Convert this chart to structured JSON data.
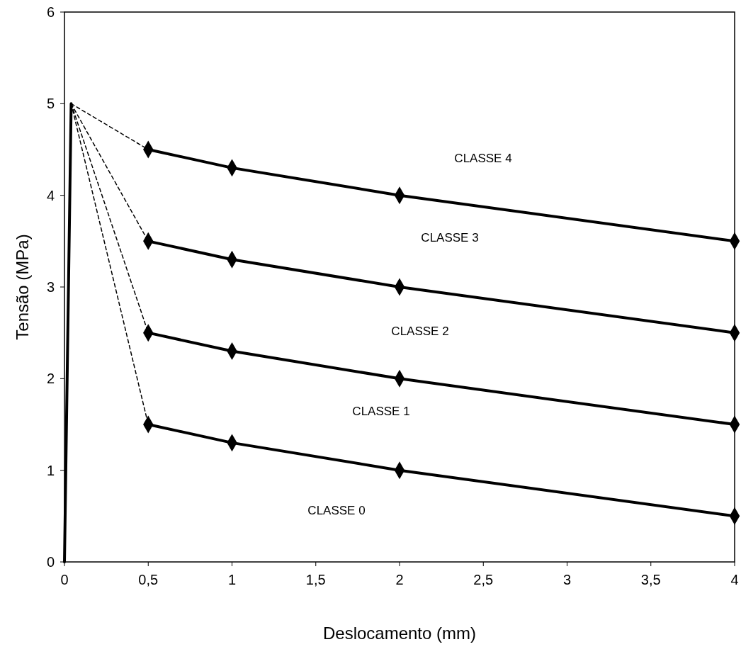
{
  "chart_data": {
    "type": "line",
    "xlabel": "Deslocamento (mm)",
    "ylabel": "Tensão (MPa)",
    "xlim": [
      0,
      4
    ],
    "ylim": [
      0,
      6
    ],
    "xticks": [
      0,
      {
        "value": 0.5,
        "label": "0,5"
      },
      1,
      {
        "value": 1.5,
        "label": "1,5"
      },
      2,
      {
        "value": 2.5,
        "label": "2,5"
      },
      3,
      {
        "value": 3.5,
        "label": "3,5"
      },
      4
    ],
    "yticks": [
      0,
      1,
      2,
      3,
      4,
      5,
      6
    ],
    "grid": false,
    "series": [
      {
        "x": [
          0,
          0.04
        ],
        "values": [
          0,
          5
        ],
        "color": "#000000",
        "line_style": "solid"
      },
      {
        "x": [
          0.04,
          0.5
        ],
        "values": [
          5,
          4.5
        ],
        "color": "#000000",
        "line_style": "dashed"
      },
      {
        "x": [
          0.04,
          0.5
        ],
        "values": [
          5,
          3.5
        ],
        "color": "#000000",
        "line_style": "dashed"
      },
      {
        "x": [
          0.04,
          0.5
        ],
        "values": [
          5,
          2.5
        ],
        "color": "#000000",
        "line_style": "dashed"
      },
      {
        "x": [
          0.04,
          0.5
        ],
        "values": [
          5,
          1.5
        ],
        "color": "#000000",
        "line_style": "dashed"
      },
      {
        "x": [
          0.5,
          1,
          2,
          4
        ],
        "values": [
          4.5,
          4.3,
          4.0,
          3.5
        ],
        "color": "#000000",
        "marker": "diamond",
        "line_style": "solid"
      },
      {
        "x": [
          0.5,
          1,
          2,
          4
        ],
        "values": [
          3.5,
          3.3,
          3.0,
          2.5
        ],
        "color": "#000000",
        "marker": "diamond",
        "line_style": "solid"
      },
      {
        "x": [
          0.5,
          1,
          2,
          4
        ],
        "values": [
          2.5,
          2.3,
          2.0,
          1.5
        ],
        "color": "#000000",
        "marker": "diamond",
        "line_style": "solid"
      },
      {
        "x": [
          0.5,
          1,
          2,
          4
        ],
        "values": [
          1.5,
          1.3,
          1.0,
          0.5
        ],
        "color": "#000000",
        "marker": "diamond",
        "line_style": "solid"
      }
    ],
    "annotations": [
      "CLASSE 4",
      "CLASSE 3",
      "CLASSE 2",
      "CLASSE 1",
      "CLASSE 0"
    ]
  }
}
